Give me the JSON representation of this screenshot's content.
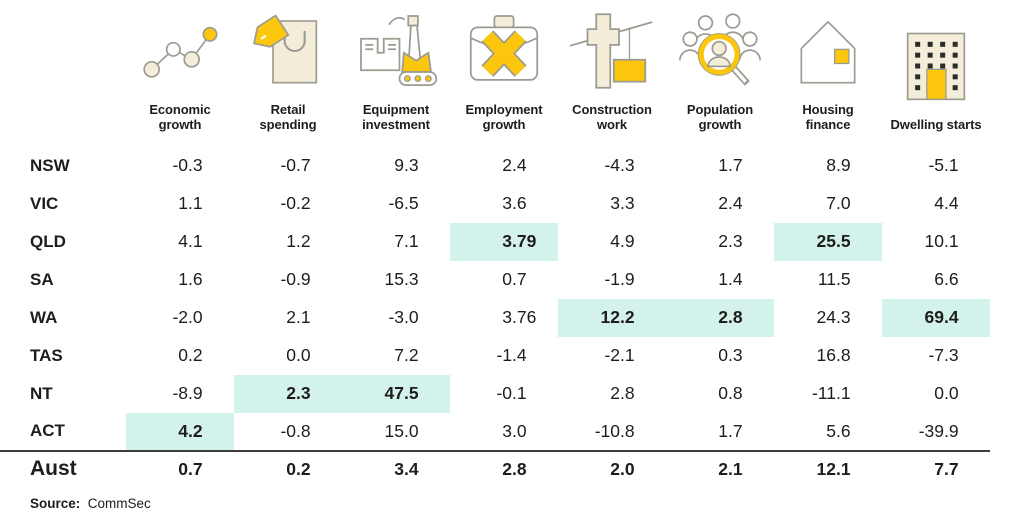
{
  "colors": {
    "highlight": "#d4f2ec",
    "accent_yellow": "#fcc60d",
    "icon_cream": "#f4edda",
    "icon_outline": "#9b9b91",
    "text": "#1d1d1b"
  },
  "table": {
    "columns": [
      {
        "label": "Economic growth",
        "icon": "economic-growth-icon"
      },
      {
        "label": "Retail spending",
        "icon": "retail-spending-icon"
      },
      {
        "label": "Equipment investment",
        "icon": "equipment-investment-icon"
      },
      {
        "label": "Employment growth",
        "icon": "employment-growth-icon"
      },
      {
        "label": "Construction work",
        "icon": "construction-work-icon"
      },
      {
        "label": "Population growth",
        "icon": "population-growth-icon"
      },
      {
        "label": "Housing finance",
        "icon": "housing-finance-icon"
      },
      {
        "label": "Dwelling starts",
        "icon": "dwelling-starts-icon"
      }
    ],
    "rows": [
      {
        "label": "NSW",
        "values": [
          "-0.3",
          "-0.7",
          "9.3",
          "2.4",
          "-4.3",
          "1.7",
          "8.9",
          "-5.1"
        ],
        "highlights": []
      },
      {
        "label": "VIC",
        "values": [
          "1.1",
          "-0.2",
          "-6.5",
          "3.6",
          "3.3",
          "2.4",
          "7.0",
          "4.4"
        ],
        "highlights": []
      },
      {
        "label": "QLD",
        "values": [
          "4.1",
          "1.2",
          "7.1",
          "3.79",
          "4.9",
          "2.3",
          "25.5",
          "10.1"
        ],
        "highlights": [
          3,
          6
        ]
      },
      {
        "label": "SA",
        "values": [
          "1.6",
          "-0.9",
          "15.3",
          "0.7",
          "-1.9",
          "1.4",
          "11.5",
          "6.6"
        ],
        "highlights": []
      },
      {
        "label": "WA",
        "values": [
          "-2.0",
          "2.1",
          "-3.0",
          "3.76",
          "12.2",
          "2.8",
          "24.3",
          "69.4"
        ],
        "highlights": [
          4,
          5,
          7
        ]
      },
      {
        "label": "TAS",
        "values": [
          "0.2",
          "0.0",
          "7.2",
          "-1.4",
          "-2.1",
          "0.3",
          "16.8",
          "-7.3"
        ],
        "highlights": []
      },
      {
        "label": "NT",
        "values": [
          "-8.9",
          "2.3",
          "47.5",
          "-0.1",
          "2.8",
          "0.8",
          "-11.1",
          "0.0"
        ],
        "highlights": [
          1,
          2
        ]
      },
      {
        "label": "ACT",
        "values": [
          "4.2",
          "-0.8",
          "15.0",
          "3.0",
          "-10.8",
          "1.7",
          "5.6",
          "-39.9"
        ],
        "highlights": [
          0
        ]
      }
    ],
    "total_row": {
      "label": "Aust",
      "values": [
        "0.7",
        "0.2",
        "3.4",
        "2.8",
        "2.0",
        "2.1",
        "12.1",
        "7.7"
      ],
      "highlights": []
    }
  },
  "source": {
    "label": "Source:",
    "value": "CommSec"
  },
  "chart_data": {
    "type": "table",
    "columns": [
      "Economic growth",
      "Retail spending",
      "Equipment investment",
      "Employment growth",
      "Construction work",
      "Population growth",
      "Housing finance",
      "Dwelling starts"
    ],
    "row_labels": [
      "NSW",
      "VIC",
      "QLD",
      "SA",
      "WA",
      "TAS",
      "NT",
      "ACT",
      "Aust"
    ],
    "rows": [
      [
        -0.3,
        -0.7,
        9.3,
        2.4,
        -4.3,
        1.7,
        8.9,
        -5.1
      ],
      [
        1.1,
        -0.2,
        -6.5,
        3.6,
        3.3,
        2.4,
        7.0,
        4.4
      ],
      [
        4.1,
        1.2,
        7.1,
        3.79,
        4.9,
        2.3,
        25.5,
        10.1
      ],
      [
        1.6,
        -0.9,
        15.3,
        0.7,
        -1.9,
        1.4,
        11.5,
        6.6
      ],
      [
        -2.0,
        2.1,
        -3.0,
        3.76,
        12.2,
        2.8,
        24.3,
        69.4
      ],
      [
        0.2,
        0.0,
        7.2,
        -1.4,
        -2.1,
        0.3,
        16.8,
        -7.3
      ],
      [
        -8.9,
        2.3,
        47.5,
        -0.1,
        2.8,
        0.8,
        -11.1,
        0.0
      ],
      [
        4.2,
        -0.8,
        15.0,
        3.0,
        -10.8,
        1.7,
        5.6,
        -39.9
      ],
      [
        0.7,
        0.2,
        3.4,
        2.8,
        2.0,
        2.1,
        12.1,
        7.7
      ]
    ],
    "highlighted_cells": [
      {
        "row": "QLD",
        "column": "Employment growth",
        "value": 3.79
      },
      {
        "row": "QLD",
        "column": "Housing finance",
        "value": 25.5
      },
      {
        "row": "WA",
        "column": "Construction work",
        "value": 12.2
      },
      {
        "row": "WA",
        "column": "Population growth",
        "value": 2.8
      },
      {
        "row": "WA",
        "column": "Dwelling starts",
        "value": 69.4
      },
      {
        "row": "NT",
        "column": "Retail spending",
        "value": 2.3
      },
      {
        "row": "NT",
        "column": "Equipment investment",
        "value": 47.5
      },
      {
        "row": "ACT",
        "column": "Economic growth",
        "value": 4.2
      }
    ],
    "legend_position": "none",
    "grid": false,
    "source": "Source: CommSec"
  }
}
